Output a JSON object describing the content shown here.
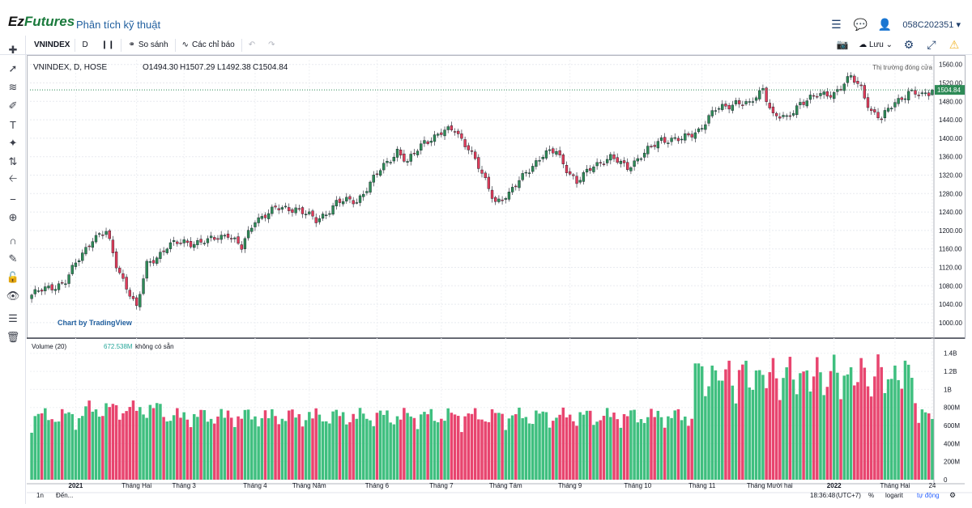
{
  "brand": {
    "name_part1": "Ez",
    "name_part2": "Futures"
  },
  "app_title": "Phân tích kỹ thuật",
  "account": "058C202351",
  "toolbar": {
    "symbol": "VNINDEX",
    "interval": "D",
    "compare_label": "So sánh",
    "indicators_label": "Các chỉ báo",
    "save_label": "Lưu"
  },
  "legend": {
    "title": "VNINDEX, D, HOSE",
    "open": "O1494.30",
    "high": "H1507.29",
    "low": "L1492.38",
    "close": "C1504.84",
    "market_status": "Thị trường đóng cửa"
  },
  "volume_legend": {
    "title": "Volume (20)",
    "value": "672.538M",
    "na": "không có sẵn"
  },
  "watermark": "Chart by TradingView",
  "price_label": "1504.84",
  "footer": {
    "range": "1n",
    "goto": "Đến...",
    "time": "18:36:48",
    "tz": "(UTC+7)",
    "pct": "%",
    "log": "logarit",
    "auto": "tự động"
  },
  "colors": {
    "up": "#26a69a",
    "down": "#ef5350",
    "vol_up": "#3fbf7f",
    "vol_down": "#e8456f",
    "brand": "#1a7a3c"
  },
  "chart_data": {
    "type": "candlestick",
    "symbol": "VNINDEX",
    "price_axis": {
      "ylim": [
        970,
        1570
      ],
      "ticks": [
        1000,
        1040,
        1080,
        1120,
        1160,
        1200,
        1240,
        1280,
        1320,
        1360,
        1400,
        1440,
        1480,
        1520,
        1560
      ]
    },
    "volume_axis": {
      "ylim": [
        0,
        1550000000
      ],
      "ticks": [
        [
          "0",
          0
        ],
        [
          "200M",
          200000000
        ],
        [
          "400M",
          400000000
        ],
        [
          "600M",
          600000000
        ],
        [
          "800M",
          800000000
        ],
        [
          "1B",
          1000000000
        ],
        [
          "1.2B",
          1200000000
        ],
        [
          "1.4B",
          1400000000
        ]
      ]
    },
    "x_ticks": [
      "2021",
      "Tháng Hai",
      "Tháng 3",
      "Tháng 4",
      "Tháng Năm",
      "Tháng 6",
      "Tháng 7",
      "Tháng Tám",
      "Tháng 9",
      "Tháng 10",
      "Tháng 11",
      "Tháng Mười hai",
      "2022",
      "Tháng Hai",
      "24"
    ],
    "x_tick_index": [
      13,
      31,
      45,
      66,
      82,
      102,
      121,
      140,
      159,
      179,
      198,
      218,
      237,
      255,
      266
    ],
    "close_anchors": [
      [
        0,
        1060
      ],
      [
        10,
        1090
      ],
      [
        18,
        1185
      ],
      [
        22,
        1195
      ],
      [
        25,
        1125
      ],
      [
        29,
        1065
      ],
      [
        31,
        1030
      ],
      [
        34,
        1125
      ],
      [
        40,
        1165
      ],
      [
        45,
        1175
      ],
      [
        52,
        1175
      ],
      [
        58,
        1195
      ],
      [
        62,
        1160
      ],
      [
        66,
        1225
      ],
      [
        72,
        1245
      ],
      [
        78,
        1250
      ],
      [
        84,
        1220
      ],
      [
        90,
        1260
      ],
      [
        96,
        1265
      ],
      [
        103,
        1330
      ],
      [
        108,
        1375
      ],
      [
        111,
        1345
      ],
      [
        116,
        1395
      ],
      [
        121,
        1410
      ],
      [
        125,
        1420
      ],
      [
        129,
        1380
      ],
      [
        133,
        1320
      ],
      [
        137,
        1265
      ],
      [
        141,
        1275
      ],
      [
        146,
        1330
      ],
      [
        151,
        1360
      ],
      [
        155,
        1375
      ],
      [
        158,
        1335
      ],
      [
        161,
        1300
      ],
      [
        166,
        1345
      ],
      [
        171,
        1355
      ],
      [
        176,
        1340
      ],
      [
        181,
        1365
      ],
      [
        186,
        1400
      ],
      [
        192,
        1395
      ],
      [
        197,
        1420
      ],
      [
        202,
        1460
      ],
      [
        208,
        1480
      ],
      [
        212,
        1470
      ],
      [
        216,
        1510
      ],
      [
        219,
        1450
      ],
      [
        223,
        1440
      ],
      [
        227,
        1480
      ],
      [
        232,
        1490
      ],
      [
        237,
        1500
      ],
      [
        242,
        1530
      ],
      [
        245,
        1510
      ],
      [
        248,
        1460
      ],
      [
        251,
        1440
      ],
      [
        255,
        1480
      ],
      [
        259,
        1500
      ],
      [
        263,
        1490
      ],
      [
        266,
        1504.84
      ]
    ],
    "bar_count": 267,
    "last": {
      "open": 1494.3,
      "high": 1507.29,
      "low": 1492.38,
      "close": 1504.84,
      "volume": 672538000
    }
  }
}
